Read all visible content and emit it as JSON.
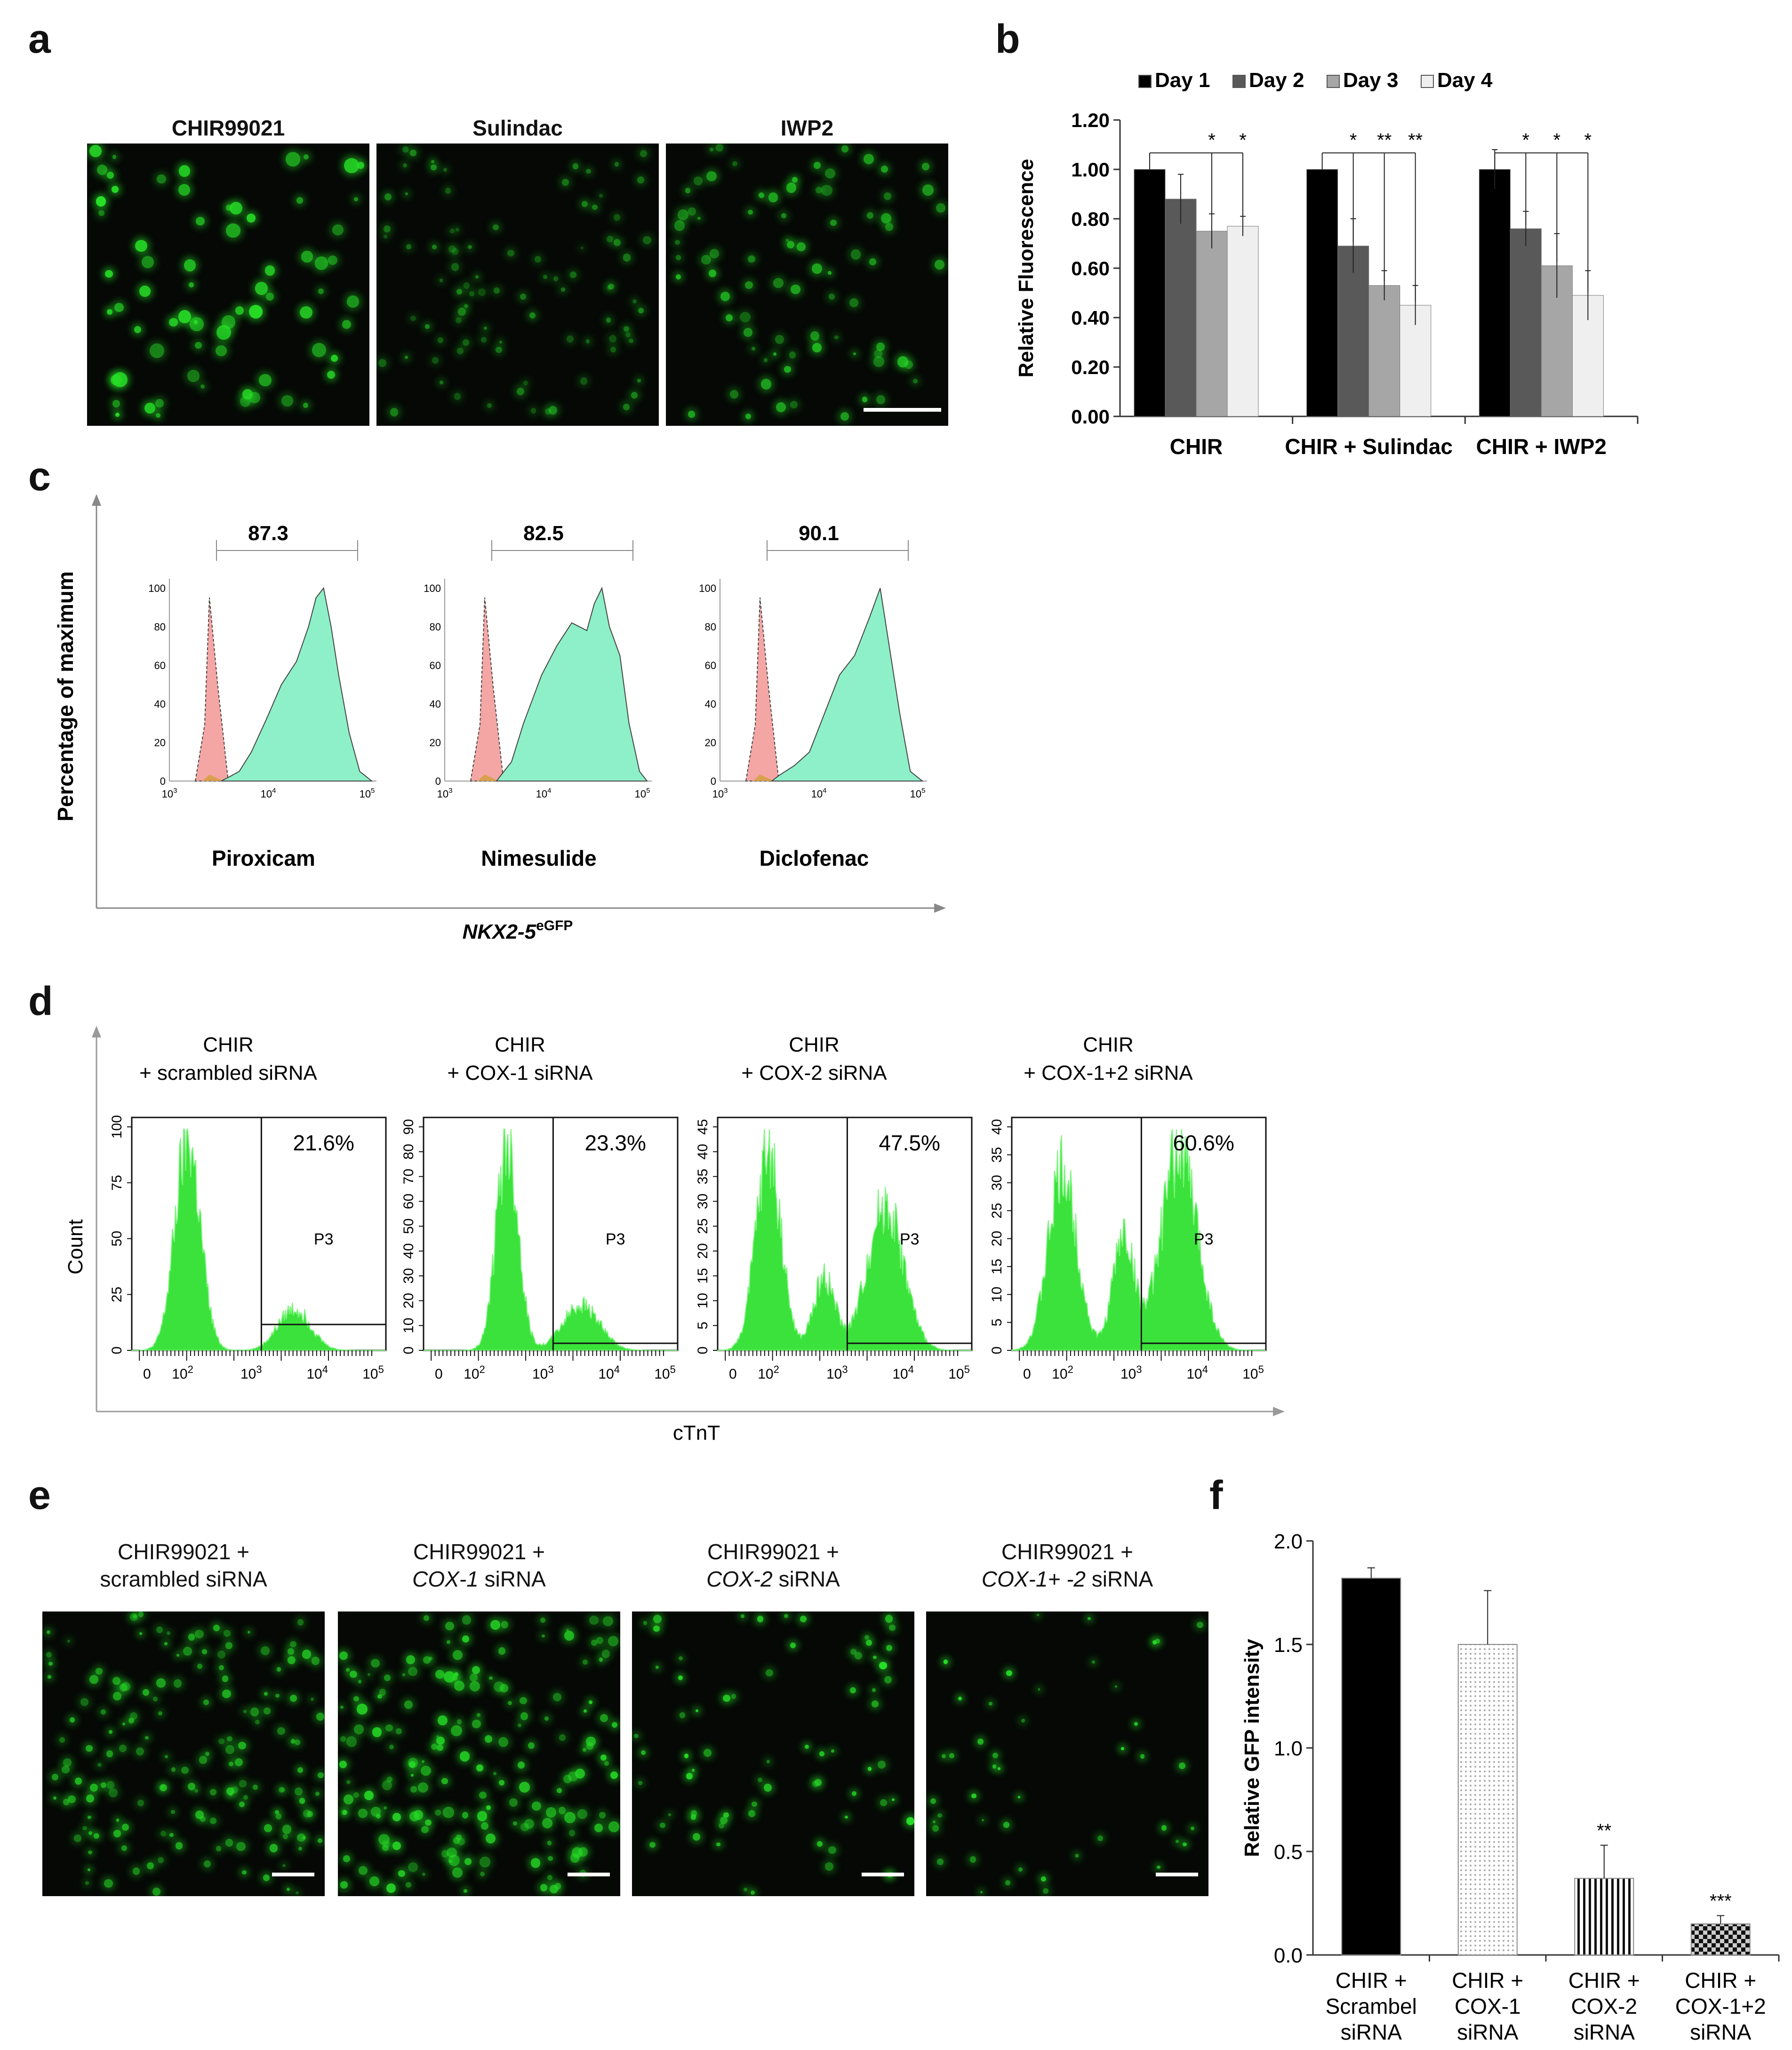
{
  "panels": {
    "a": {
      "letter": "a",
      "titles": [
        "CHIR99021",
        "Sulindac",
        "IWP2"
      ]
    },
    "b": {
      "letter": "b",
      "chart_data": {
        "type": "bar",
        "categories": [
          "CHIR",
          "CHIR + Sulindac",
          "CHIR + IWP2"
        ],
        "ylabel": "Relative Fluorescence",
        "ylim": [
          0,
          1.2
        ],
        "yticks": [
          "0.00",
          "0.20",
          "0.40",
          "0.60",
          "0.80",
          "1.00",
          "1.20"
        ],
        "legend_position": "top",
        "series": [
          {
            "name": "Day 1",
            "color": "#000000",
            "values": [
              1.0,
              1.0,
              1.0
            ],
            "err": [
              0.0,
              0.0,
              0.08
            ]
          },
          {
            "name": "Day 2",
            "color": "#595959",
            "values": [
              0.88,
              0.69,
              0.76
            ],
            "err": [
              0.1,
              0.11,
              0.07
            ]
          },
          {
            "name": "Day 3",
            "color": "#a6a6a6",
            "values": [
              0.75,
              0.53,
              0.61
            ],
            "err": [
              0.07,
              0.06,
              0.13
            ]
          },
          {
            "name": "Day 4",
            "color": "#efefef",
            "values": [
              0.77,
              0.45,
              0.49
            ],
            "err": [
              0.04,
              0.08,
              0.1
            ]
          }
        ],
        "significance": [
          {
            "group": 0,
            "series": 2,
            "label": "*"
          },
          {
            "group": 0,
            "series": 3,
            "label": "*"
          },
          {
            "group": 1,
            "series": 1,
            "label": "*"
          },
          {
            "group": 1,
            "series": 2,
            "label": "**"
          },
          {
            "group": 1,
            "series": 3,
            "label": "**"
          },
          {
            "group": 2,
            "series": 1,
            "label": "*"
          },
          {
            "group": 2,
            "series": 2,
            "label": "*"
          },
          {
            "group": 2,
            "series": 3,
            "label": "*"
          }
        ]
      }
    },
    "c": {
      "letter": "c",
      "ylabel": "Percentage of maximum",
      "xlabel_main": "NKX2-5",
      "xlabel_sup": "eGFP",
      "yticks": [
        "0",
        "20",
        "40",
        "60",
        "80",
        "100"
      ],
      "xticks_base": "10",
      "xticks_exp": [
        "3",
        "4",
        "5"
      ],
      "histograms": [
        {
          "name": "Piroxicam",
          "gate_value": "87.3"
        },
        {
          "name": "Nimesulide",
          "gate_value": "82.5"
        },
        {
          "name": "Diclofenac",
          "gate_value": "90.1"
        }
      ]
    },
    "d": {
      "letter": "d",
      "ylabel": "Count",
      "xlabel": "cTnT",
      "gate_name": "P3",
      "xticks": [
        "0",
        "10",
        "10",
        "10",
        "10"
      ],
      "xtick_exps": [
        "",
        "2",
        "3",
        "4",
        "5"
      ],
      "plots": [
        {
          "title1": "CHIR",
          "title2": "+ scrambled siRNA",
          "percent": "21.6%",
          "yticks": [
            "0",
            "25",
            "50",
            "75",
            "100"
          ],
          "ymax": 100
        },
        {
          "title1": "CHIR",
          "title2": "+ COX-1 siRNA",
          "percent": "23.3%",
          "yticks": [
            "0",
            "10",
            "20",
            "30",
            "40",
            "50",
            "60",
            "70",
            "80",
            "90"
          ],
          "ymax": 90
        },
        {
          "title1": "CHIR",
          "title2": "+ COX-2 siRNA",
          "percent": "47.5%",
          "yticks": [
            "0",
            "5",
            "10",
            "15",
            "20",
            "25",
            "30",
            "35",
            "40",
            "45"
          ],
          "ymax": 45
        },
        {
          "title1": "CHIR",
          "title2": "+ COX-1+2 siRNA",
          "percent": "60.6%",
          "yticks": [
            "0",
            "5",
            "10",
            "15",
            "20",
            "25",
            "30",
            "35",
            "40"
          ],
          "ymax": 40
        }
      ]
    },
    "e": {
      "letter": "e",
      "titles": [
        {
          "line1": "CHIR99021 +",
          "line2_italic": "",
          "line2": "scrambled siRNA"
        },
        {
          "line1": "CHIR99021 +",
          "line2_italic": "COX-1",
          "line2": " siRNA"
        },
        {
          "line1": "CHIR99021 +",
          "line2_italic": "COX-2",
          "line2": " siRNA"
        },
        {
          "line1": "CHIR99021 +",
          "line2_italic": "COX-1+ -2",
          "line2": " siRNA"
        }
      ]
    },
    "f": {
      "letter": "f",
      "chart_data": {
        "type": "bar",
        "ylabel": "Relative GFP intensity",
        "ylim": [
          0,
          2.0
        ],
        "yticks": [
          "0.0",
          "0.5",
          "1.0",
          "1.5",
          "2.0"
        ],
        "categories": [
          [
            "CHIR +",
            "Scrambel",
            "siRNA"
          ],
          [
            "CHIR +",
            "COX-1",
            "siRNA"
          ],
          [
            "CHIR +",
            "COX-2",
            "siRNA"
          ],
          [
            "CHIR +",
            "COX-1+2",
            "siRNA"
          ]
        ],
        "values": [
          1.82,
          1.5,
          0.37,
          0.15
        ],
        "err": [
          0.05,
          0.26,
          0.16,
          0.04
        ],
        "patterns": [
          "solid-black",
          "dots",
          "vertical-lines",
          "checker"
        ],
        "significance": [
          "",
          "",
          "**",
          "***"
        ]
      }
    }
  }
}
